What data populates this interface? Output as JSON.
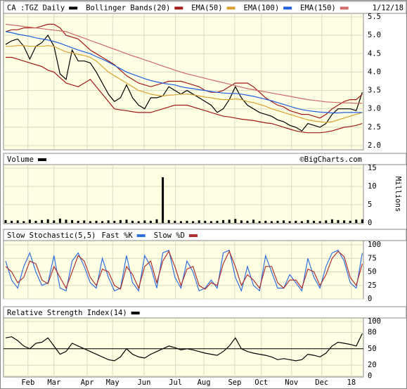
{
  "chart_data": [
    {
      "type": "line",
      "date": "1/12/18",
      "ylim": [
        2,
        5.5
      ],
      "yticks": [
        {
          "value": 2,
          "label": "2.0"
        },
        2.5,
        {
          "value": 3,
          "label": "3.0"
        },
        3.5,
        {
          "value": 4,
          "label": "4.0"
        },
        4.5,
        {
          "value": 5,
          "label": "5.0"
        },
        5.5
      ],
      "series": [
        {
          "name": "CA :TGZ Daily",
          "color": "#000000",
          "values": [
            4.75,
            4.85,
            4.9,
            4.7,
            4.35,
            4.7,
            4.8,
            5.0,
            4.7,
            3.95,
            3.8,
            4.6,
            4.3,
            4.3,
            4.25,
            4.0,
            3.7,
            3.4,
            3.2,
            3.3,
            3.65,
            3.3,
            3.1,
            3.0,
            3.3,
            3.3,
            3.35,
            3.6,
            3.5,
            3.4,
            3.5,
            3.4,
            3.3,
            3.2,
            3.1,
            2.9,
            3.0,
            3.25,
            3.6,
            3.3,
            3.1,
            3.0,
            2.9,
            2.85,
            2.8,
            2.7,
            2.65,
            2.55,
            2.5,
            2.4,
            2.6,
            2.55,
            2.5,
            2.6,
            2.85,
            3.0,
            3.0,
            3.0,
            2.95,
            3.45
          ]
        },
        {
          "name": "Bollinger Bands(20)",
          "color": "#a01818",
          "upper": [
            5.1,
            5.15,
            5.15,
            5.2,
            5.2,
            5.2,
            5.25,
            5.3,
            5.3,
            5.2,
            5.0,
            4.95,
            4.9,
            4.75,
            4.6,
            4.5,
            4.4,
            4.3,
            4.2,
            4.05,
            3.9,
            3.8,
            3.7,
            3.65,
            3.6,
            3.65,
            3.7,
            3.75,
            3.75,
            3.75,
            3.7,
            3.65,
            3.6,
            3.5,
            3.45,
            3.45,
            3.5,
            3.6,
            3.7,
            3.7,
            3.7,
            3.6,
            3.45,
            3.3,
            3.2,
            3.1,
            3.05,
            2.95,
            2.9,
            2.85,
            2.85,
            2.8,
            2.75,
            2.85,
            3.0,
            3.1,
            3.2,
            3.25,
            3.25,
            3.4
          ],
          "lower": [
            4.4,
            4.4,
            4.35,
            4.3,
            4.25,
            4.2,
            4.15,
            4.05,
            4.0,
            3.85,
            3.7,
            3.65,
            3.6,
            3.7,
            3.8,
            3.6,
            3.4,
            3.2,
            3.0,
            2.97,
            2.95,
            2.92,
            2.9,
            2.9,
            2.9,
            2.95,
            3.0,
            3.05,
            3.1,
            3.1,
            3.1,
            3.05,
            3.0,
            2.95,
            2.9,
            2.85,
            2.8,
            2.78,
            2.75,
            2.72,
            2.7,
            2.68,
            2.65,
            2.62,
            2.6,
            2.55,
            2.5,
            2.45,
            2.4,
            2.37,
            2.35,
            2.35,
            2.35,
            2.37,
            2.4,
            2.45,
            2.5,
            2.52,
            2.55,
            2.6
          ]
        },
        {
          "name": "EMA(50)",
          "color": "#d9a030",
          "values": [
            4.7,
            4.7,
            4.72,
            4.72,
            4.7,
            4.7,
            4.7,
            4.72,
            4.7,
            4.62,
            4.55,
            4.52,
            4.48,
            4.45,
            4.4,
            4.3,
            4.15,
            4.0,
            3.9,
            3.8,
            3.7,
            3.6,
            3.5,
            3.45,
            3.4,
            3.37,
            3.35,
            3.37,
            3.38,
            3.4,
            3.4,
            3.38,
            3.35,
            3.32,
            3.3,
            3.27,
            3.25,
            3.25,
            3.27,
            3.25,
            3.2,
            3.17,
            3.12,
            3.07,
            3.0,
            2.95,
            2.9,
            2.85,
            2.8,
            2.75,
            2.7,
            2.67,
            2.65,
            2.63,
            2.65,
            2.7,
            2.75,
            2.8,
            2.85,
            2.9
          ]
        },
        {
          "name": "EMA(100)",
          "color": "#2060e0",
          "values": [
            5.1,
            5.07,
            5.03,
            5.0,
            4.97,
            4.93,
            4.9,
            4.87,
            4.83,
            4.78,
            4.72,
            4.66,
            4.6,
            4.55,
            4.5,
            4.42,
            4.35,
            4.27,
            4.18,
            4.09,
            4.0,
            3.94,
            3.88,
            3.82,
            3.77,
            3.73,
            3.7,
            3.67,
            3.65,
            3.6,
            3.57,
            3.55,
            3.52,
            3.5,
            3.47,
            3.45,
            3.43,
            3.42,
            3.42,
            3.4,
            3.37,
            3.34,
            3.3,
            3.26,
            3.22,
            3.17,
            3.12,
            3.07,
            3.02,
            2.98,
            2.95,
            2.93,
            2.91,
            2.9,
            2.89,
            2.89,
            2.9,
            2.9,
            2.9,
            2.9
          ]
        },
        {
          "name": "EMA(150)",
          "color": "#d06868",
          "values": [
            5.3,
            5.28,
            5.26,
            5.24,
            5.22,
            5.2,
            5.18,
            5.16,
            5.14,
            5.12,
            5.1,
            5.04,
            4.98,
            4.92,
            4.86,
            4.8,
            4.74,
            4.68,
            4.62,
            4.56,
            4.5,
            4.44,
            4.39,
            4.33,
            4.28,
            4.22,
            4.16,
            4.11,
            4.05,
            4.0,
            3.95,
            3.91,
            3.87,
            3.83,
            3.79,
            3.75,
            3.71,
            3.67,
            3.63,
            3.59,
            3.55,
            3.52,
            3.49,
            3.46,
            3.43,
            3.4,
            3.37,
            3.34,
            3.31,
            3.28,
            3.25,
            3.23,
            3.21,
            3.19,
            3.18,
            3.17,
            3.16,
            3.16,
            3.15,
            3.15
          ]
        }
      ]
    },
    {
      "type": "bar",
      "credit": "©BigCharts.com",
      "y_label": "Millions",
      "ylim": [
        0,
        15
      ],
      "yticks": [
        0,
        5,
        10,
        15
      ],
      "series": [
        {
          "name": "Volume",
          "color": "#000000",
          "values": [
            0.8,
            0.6,
            0.7,
            0.5,
            0.9,
            0.6,
            0.8,
            1.0,
            0.7,
            1.2,
            0.9,
            0.8,
            0.6,
            0.7,
            0.5,
            0.6,
            0.5,
            0.7,
            0.6,
            0.8,
            0.9,
            0.6,
            0.5,
            0.7,
            0.6,
            1.0,
            12.5,
            0.8,
            0.6,
            0.5,
            0.6,
            0.5,
            0.7,
            0.6,
            0.5,
            0.6,
            0.8,
            0.9,
            1.1,
            0.7,
            0.6,
            0.9,
            0.5,
            0.6,
            0.5,
            0.6,
            0.7,
            0.5,
            0.6,
            0.5,
            0.8,
            0.6,
            0.5,
            0.7,
            1.0,
            0.8,
            0.7,
            0.6,
            0.9,
            1.0
          ]
        }
      ]
    },
    {
      "type": "line",
      "title": "Slow Stochastic(5,5)",
      "ylim": [
        0,
        100
      ],
      "yticks": [
        0,
        25,
        50,
        75,
        100
      ],
      "series": [
        {
          "name": "Fast %K",
          "color": "#3070e0",
          "values": [
            70,
            35,
            20,
            60,
            85,
            50,
            25,
            30,
            80,
            20,
            15,
            70,
            85,
            60,
            30,
            20,
            75,
            40,
            15,
            20,
            80,
            30,
            15,
            80,
            60,
            20,
            85,
            90,
            40,
            20,
            70,
            50,
            15,
            20,
            35,
            20,
            85,
            90,
            40,
            15,
            60,
            25,
            15,
            80,
            50,
            20,
            20,
            45,
            30,
            15,
            75,
            40,
            20,
            60,
            85,
            90,
            70,
            30,
            20,
            85
          ]
        },
        {
          "name": "Slow %D",
          "color": "#b03030",
          "values": [
            60,
            50,
            30,
            40,
            70,
            65,
            35,
            28,
            60,
            40,
            20,
            50,
            80,
            70,
            40,
            25,
            55,
            50,
            25,
            18,
            60,
            45,
            20,
            60,
            70,
            30,
            70,
            88,
            60,
            25,
            55,
            60,
            25,
            18,
            30,
            25,
            65,
            88,
            60,
            25,
            45,
            35,
            20,
            60,
            60,
            30,
            20,
            35,
            35,
            20,
            55,
            50,
            25,
            45,
            75,
            88,
            78,
            40,
            25,
            65
          ]
        }
      ]
    },
    {
      "type": "line",
      "reference_line": 50,
      "ylim": [
        0,
        100
      ],
      "yticks": [
        0,
        20,
        50,
        80,
        100
      ],
      "xlim": [
        0,
        59
      ],
      "xticks": [
        {
          "value": 3.7,
          "label": "Feb"
        },
        {
          "value": 8,
          "label": "Mar"
        },
        {
          "value": 13.5,
          "label": "Apr"
        },
        {
          "value": 17.7,
          "label": "May"
        },
        {
          "value": 22.9,
          "label": "Jun"
        },
        {
          "value": 28.1,
          "label": "Jul"
        },
        {
          "value": 32.8,
          "label": "Aug"
        },
        {
          "value": 37.9,
          "label": "Sep"
        },
        {
          "value": 42.3,
          "label": "Oct"
        },
        {
          "value": 47.3,
          "label": "Nov"
        },
        {
          "value": 52.3,
          "label": "Dec"
        },
        {
          "value": 57.2,
          "label": "18"
        }
      ],
      "series": [
        {
          "name": "Relative Strength Index(14)",
          "color": "#000000",
          "values": [
            70,
            72,
            65,
            55,
            50,
            60,
            62,
            70,
            55,
            40,
            45,
            60,
            55,
            50,
            45,
            40,
            35,
            30,
            28,
            35,
            50,
            40,
            35,
            33,
            40,
            45,
            50,
            55,
            52,
            48,
            50,
            48,
            45,
            42,
            40,
            38,
            45,
            55,
            70,
            50,
            45,
            42,
            40,
            38,
            35,
            30,
            32,
            30,
            28,
            30,
            40,
            38,
            35,
            42,
            55,
            62,
            60,
            58,
            55,
            78
          ]
        }
      ]
    }
  ]
}
